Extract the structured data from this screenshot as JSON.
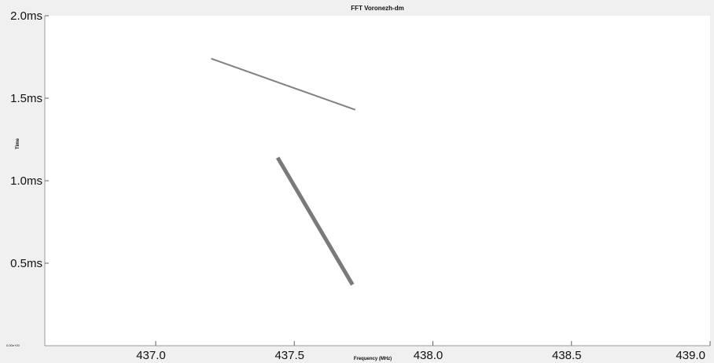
{
  "chart_data": {
    "type": "line",
    "title": "FFT Voronezh-dm",
    "xlabel": "Frequency (MHz)",
    "ylabel": "Time",
    "xlim": [
      436.6,
      439.0
    ],
    "ylim": [
      0.0,
      2.0
    ],
    "x_ticks": [
      {
        "value": 437.0,
        "label": "437.0"
      },
      {
        "value": 437.5,
        "label": "437.5"
      },
      {
        "value": 438.0,
        "label": "438.0"
      },
      {
        "value": 438.5,
        "label": "438.5"
      },
      {
        "value": 439.0,
        "label": "439.0"
      }
    ],
    "y_ticks": [
      {
        "value": 0.0,
        "label": "0.00e+00"
      },
      {
        "value": 0.5,
        "label": "0.5ms"
      },
      {
        "value": 1.0,
        "label": "1.0ms"
      },
      {
        "value": 1.5,
        "label": "1.5ms"
      },
      {
        "value": 2.0,
        "label": "2.0ms"
      }
    ],
    "series": [
      {
        "x": [
          437.2,
          437.72
        ],
        "y": [
          1.74,
          1.43
        ],
        "color": "#808080"
      },
      {
        "x": [
          437.44,
          437.71
        ],
        "y": [
          1.14,
          0.37
        ],
        "color": "#7a7a7a"
      }
    ],
    "grid": false,
    "legend": "none"
  }
}
